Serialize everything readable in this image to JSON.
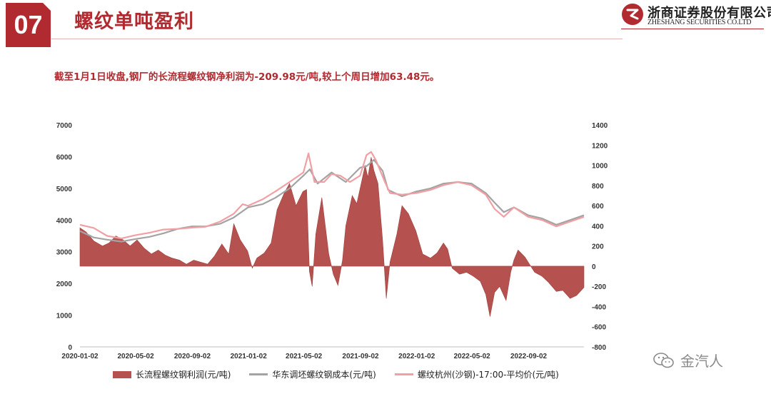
{
  "header": {
    "section_number": "07",
    "title": "螺纹单吨盈利",
    "company_cn": "浙商证券股份有限公司",
    "company_en": "ZHESHANG SECURITIES CO.LTD",
    "brand_color": "#b02a2f"
  },
  "subtitle": "截至1月1日收盘,钢厂的长流程螺纹钢净利润为-209.98元/吨,较上个周日增加63.48元。",
  "watermark": {
    "icon": "wechat-icon",
    "text": "金汽人"
  },
  "legend": [
    {
      "label": "长流程螺纹钢利润(元/吨)",
      "color": "#b5514f"
    },
    {
      "label": "华东调坯螺纹钢成本(元/吨)",
      "color": "#a3a3a3"
    },
    {
      "label": "螺纹杭州(沙钢)-17:00-平均价(元/吨)",
      "color": "#f0a0a4"
    }
  ],
  "chart_data": {
    "type": "line+area",
    "title": "",
    "x_ticks": [
      "2020-01-02",
      "2020-05-02",
      "2020-09-02",
      "2021-01-02",
      "2021-05-02",
      "2021-09-02",
      "2022-01-02",
      "2022-05-02",
      "2022-09-02"
    ],
    "x_range": [
      "2020-01-02",
      "2022-12-31"
    ],
    "y_left": {
      "range": [
        0,
        7000
      ],
      "ticks": [
        0,
        1000,
        2000,
        3000,
        4000,
        5000,
        6000,
        7000
      ]
    },
    "y_right": {
      "range": [
        -800,
        1400
      ],
      "ticks": [
        -800,
        -600,
        -400,
        -200,
        0,
        200,
        400,
        600,
        800,
        1000,
        1200,
        1400
      ]
    },
    "grid": false,
    "legend_position": "bottom",
    "series": [
      {
        "name": "长流程螺纹钢利润(元/吨)",
        "axis": "right",
        "style": "area",
        "color": "#b5514f",
        "points": [
          [
            "2020-01-02",
            380
          ],
          [
            "2020-01-15",
            340
          ],
          [
            "2020-02-01",
            250
          ],
          [
            "2020-02-20",
            200
          ],
          [
            "2020-03-05",
            230
          ],
          [
            "2020-03-20",
            300
          ],
          [
            "2020-04-05",
            260
          ],
          [
            "2020-04-20",
            200
          ],
          [
            "2020-05-05",
            260
          ],
          [
            "2020-05-20",
            180
          ],
          [
            "2020-06-05",
            120
          ],
          [
            "2020-06-20",
            160
          ],
          [
            "2020-07-05",
            110
          ],
          [
            "2020-07-20",
            80
          ],
          [
            "2020-08-05",
            60
          ],
          [
            "2020-08-20",
            20
          ],
          [
            "2020-09-05",
            60
          ],
          [
            "2020-09-20",
            40
          ],
          [
            "2020-10-05",
            20
          ],
          [
            "2020-10-20",
            100
          ],
          [
            "2020-11-05",
            220
          ],
          [
            "2020-11-20",
            120
          ],
          [
            "2020-12-01",
            420
          ],
          [
            "2020-12-15",
            260
          ],
          [
            "2020-12-31",
            150
          ],
          [
            "2021-01-10",
            -20
          ],
          [
            "2021-01-20",
            80
          ],
          [
            "2021-02-05",
            130
          ],
          [
            "2021-02-20",
            230
          ],
          [
            "2021-03-05",
            560
          ],
          [
            "2021-03-20",
            720
          ],
          [
            "2021-04-01",
            820
          ],
          [
            "2021-04-15",
            600
          ],
          [
            "2021-04-30",
            740
          ],
          [
            "2021-05-08",
            760
          ],
          [
            "2021-05-14",
            -50
          ],
          [
            "2021-05-20",
            -200
          ],
          [
            "2021-05-28",
            320
          ],
          [
            "2021-06-10",
            680
          ],
          [
            "2021-06-25",
            120
          ],
          [
            "2021-07-05",
            -80
          ],
          [
            "2021-07-15",
            -190
          ],
          [
            "2021-07-25",
            60
          ],
          [
            "2021-08-01",
            400
          ],
          [
            "2021-08-15",
            700
          ],
          [
            "2021-08-25",
            620
          ],
          [
            "2021-09-05",
            850
          ],
          [
            "2021-09-12",
            1000
          ],
          [
            "2021-09-18",
            880
          ],
          [
            "2021-09-25",
            1080
          ],
          [
            "2021-10-01",
            950
          ],
          [
            "2021-10-10",
            820
          ],
          [
            "2021-10-20",
            250
          ],
          [
            "2021-10-28",
            -320
          ],
          [
            "2021-11-05",
            40
          ],
          [
            "2021-11-20",
            320
          ],
          [
            "2021-12-01",
            600
          ],
          [
            "2021-12-15",
            520
          ],
          [
            "2021-12-31",
            350
          ],
          [
            "2022-01-15",
            120
          ],
          [
            "2022-02-01",
            80
          ],
          [
            "2022-02-15",
            130
          ],
          [
            "2022-03-01",
            230
          ],
          [
            "2022-03-10",
            170
          ],
          [
            "2022-03-20",
            -20
          ],
          [
            "2022-04-05",
            -80
          ],
          [
            "2022-04-20",
            -60
          ],
          [
            "2022-05-05",
            -100
          ],
          [
            "2022-05-20",
            -150
          ],
          [
            "2022-06-01",
            -280
          ],
          [
            "2022-06-10",
            -500
          ],
          [
            "2022-06-20",
            -260
          ],
          [
            "2022-07-01",
            -200
          ],
          [
            "2022-07-15",
            -340
          ],
          [
            "2022-07-25",
            -60
          ],
          [
            "2022-08-01",
            60
          ],
          [
            "2022-08-10",
            160
          ],
          [
            "2022-08-25",
            90
          ],
          [
            "2022-09-05",
            10
          ],
          [
            "2022-09-15",
            -60
          ],
          [
            "2022-10-01",
            -100
          ],
          [
            "2022-10-15",
            -160
          ],
          [
            "2022-11-01",
            -250
          ],
          [
            "2022-11-15",
            -240
          ],
          [
            "2022-12-01",
            -320
          ],
          [
            "2022-12-15",
            -290
          ],
          [
            "2022-12-31",
            -209.98
          ]
        ]
      },
      {
        "name": "华东调坯螺纹钢成本(元/吨)",
        "axis": "left",
        "style": "line",
        "color": "#a3a3a3",
        "points": [
          [
            "2020-01-02",
            3650
          ],
          [
            "2020-02-01",
            3450
          ],
          [
            "2020-03-01",
            3380
          ],
          [
            "2020-04-01",
            3320
          ],
          [
            "2020-05-01",
            3400
          ],
          [
            "2020-06-01",
            3470
          ],
          [
            "2020-07-01",
            3580
          ],
          [
            "2020-08-01",
            3720
          ],
          [
            "2020-09-01",
            3800
          ],
          [
            "2020-10-01",
            3800
          ],
          [
            "2020-11-01",
            3880
          ],
          [
            "2020-12-01",
            4080
          ],
          [
            "2021-01-01",
            4400
          ],
          [
            "2021-02-01",
            4500
          ],
          [
            "2021-03-01",
            4700
          ],
          [
            "2021-04-01",
            5000
          ],
          [
            "2021-05-01",
            5400
          ],
          [
            "2021-05-15",
            5600
          ],
          [
            "2021-06-01",
            5150
          ],
          [
            "2021-07-01",
            5500
          ],
          [
            "2021-08-01",
            5200
          ],
          [
            "2021-09-01",
            5650
          ],
          [
            "2021-09-15",
            5700
          ],
          [
            "2021-10-01",
            5900
          ],
          [
            "2021-10-20",
            5550
          ],
          [
            "2021-11-01",
            4950
          ],
          [
            "2021-12-01",
            4750
          ],
          [
            "2022-01-01",
            4900
          ],
          [
            "2022-02-01",
            5000
          ],
          [
            "2022-03-01",
            5150
          ],
          [
            "2022-04-01",
            5200
          ],
          [
            "2022-05-01",
            5150
          ],
          [
            "2022-06-01",
            4850
          ],
          [
            "2022-06-20",
            4550
          ],
          [
            "2022-07-10",
            4250
          ],
          [
            "2022-08-01",
            4400
          ],
          [
            "2022-09-01",
            4150
          ],
          [
            "2022-10-01",
            4050
          ],
          [
            "2022-11-01",
            3850
          ],
          [
            "2022-12-01",
            4000
          ],
          [
            "2022-12-31",
            4150
          ]
        ]
      },
      {
        "name": "螺纹杭州(沙钢)-17:00-平均价(元/吨)",
        "axis": "left",
        "style": "line",
        "color": "#f0a0a4",
        "points": [
          [
            "2020-01-02",
            3850
          ],
          [
            "2020-02-01",
            3750
          ],
          [
            "2020-03-01",
            3500
          ],
          [
            "2020-04-01",
            3420
          ],
          [
            "2020-05-01",
            3520
          ],
          [
            "2020-06-01",
            3600
          ],
          [
            "2020-07-01",
            3700
          ],
          [
            "2020-08-01",
            3720
          ],
          [
            "2020-09-01",
            3760
          ],
          [
            "2020-10-01",
            3790
          ],
          [
            "2020-11-01",
            3950
          ],
          [
            "2020-12-01",
            4200
          ],
          [
            "2020-12-20",
            4500
          ],
          [
            "2021-01-01",
            4450
          ],
          [
            "2021-02-01",
            4650
          ],
          [
            "2021-03-01",
            4900
          ],
          [
            "2021-04-01",
            5200
          ],
          [
            "2021-05-01",
            5500
          ],
          [
            "2021-05-12",
            6100
          ],
          [
            "2021-05-25",
            5200
          ],
          [
            "2021-06-15",
            5200
          ],
          [
            "2021-07-01",
            5450
          ],
          [
            "2021-07-20",
            5400
          ],
          [
            "2021-08-10",
            5200
          ],
          [
            "2021-09-01",
            5400
          ],
          [
            "2021-09-15",
            6050
          ],
          [
            "2021-09-25",
            6150
          ],
          [
            "2021-10-05",
            5900
          ],
          [
            "2021-10-25",
            5200
          ],
          [
            "2021-11-05",
            4850
          ],
          [
            "2021-12-01",
            4800
          ],
          [
            "2022-01-01",
            4850
          ],
          [
            "2022-02-01",
            4950
          ],
          [
            "2022-03-01",
            5100
          ],
          [
            "2022-04-01",
            5200
          ],
          [
            "2022-05-01",
            5100
          ],
          [
            "2022-06-01",
            4800
          ],
          [
            "2022-06-20",
            4350
          ],
          [
            "2022-07-10",
            4100
          ],
          [
            "2022-08-01",
            4400
          ],
          [
            "2022-09-01",
            4100
          ],
          [
            "2022-10-01",
            4000
          ],
          [
            "2022-11-01",
            3800
          ],
          [
            "2022-12-01",
            3950
          ],
          [
            "2022-12-31",
            4100
          ]
        ]
      }
    ]
  }
}
